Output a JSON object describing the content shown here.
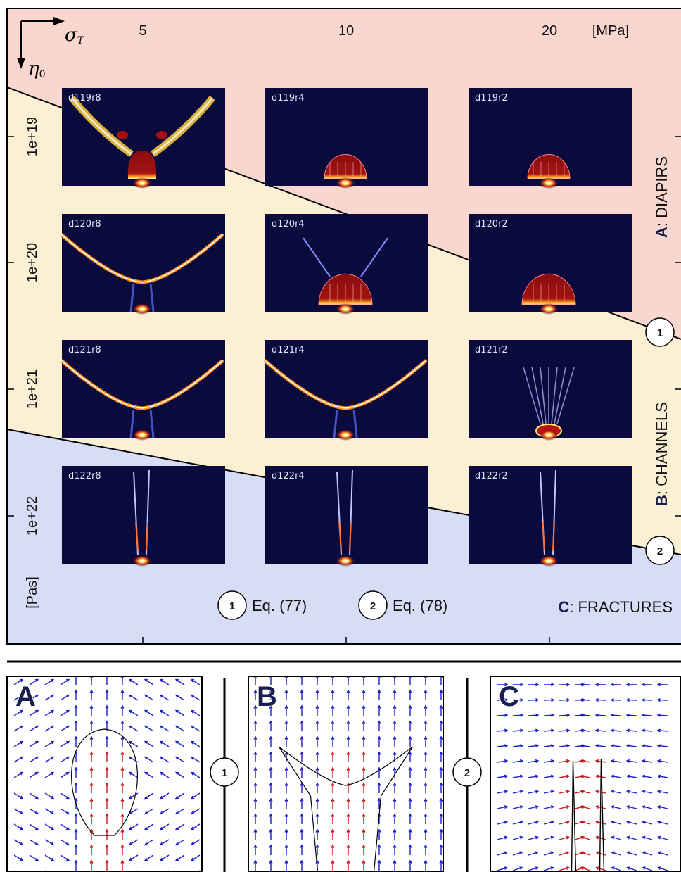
{
  "colors": {
    "diapirs": "#f9d7cf",
    "channels": "#fbf0d3",
    "fractures": "#d7dcf7",
    "thumb_bg": "#0a0a3c",
    "arrow_blue": "#1a20c8",
    "arrow_red": "#c81818"
  },
  "axes": {
    "sigma_symbol": "σ",
    "sigma_sub": "T",
    "eta_symbol": "η",
    "eta_sub": "0",
    "x_ticks": [
      "5",
      "10",
      "20"
    ],
    "x_unit": "[MPa]",
    "y_ticks": [
      "1e+19",
      "1e+20",
      "1e+21",
      "1e+22"
    ],
    "y_unit": "[Pas]"
  },
  "regimes": {
    "a_letter": "A",
    "a_label": ": DIAPIRS",
    "b_letter": "B",
    "b_label": ": CHANNELS",
    "c_letter": "C",
    "c_label": ": FRACTURES"
  },
  "boundaries": [
    {
      "num": "1",
      "eq": "Eq. (77)"
    },
    {
      "num": "2",
      "eq": "Eq. (78)"
    }
  ],
  "thumbnails": [
    {
      "label": "d119r8",
      "kind": "v"
    },
    {
      "label": "d119r4",
      "kind": "dome"
    },
    {
      "label": "d119r2",
      "kind": "dome"
    },
    {
      "label": "d120r8",
      "kind": "channel"
    },
    {
      "label": "d120r4",
      "kind": "dome-wide"
    },
    {
      "label": "d120r2",
      "kind": "dome-wide"
    },
    {
      "label": "d121r8",
      "kind": "channel"
    },
    {
      "label": "d121r4",
      "kind": "channel"
    },
    {
      "label": "d121r2",
      "kind": "spray"
    },
    {
      "label": "d122r8",
      "kind": "fracture"
    },
    {
      "label": "d122r4",
      "kind": "fracture"
    },
    {
      "label": "d122r2",
      "kind": "fracture"
    }
  ],
  "bottom_panels": [
    {
      "letter": "A",
      "kind": "diapir"
    },
    {
      "letter": "B",
      "kind": "channel"
    },
    {
      "letter": "C",
      "kind": "fracture"
    }
  ]
}
